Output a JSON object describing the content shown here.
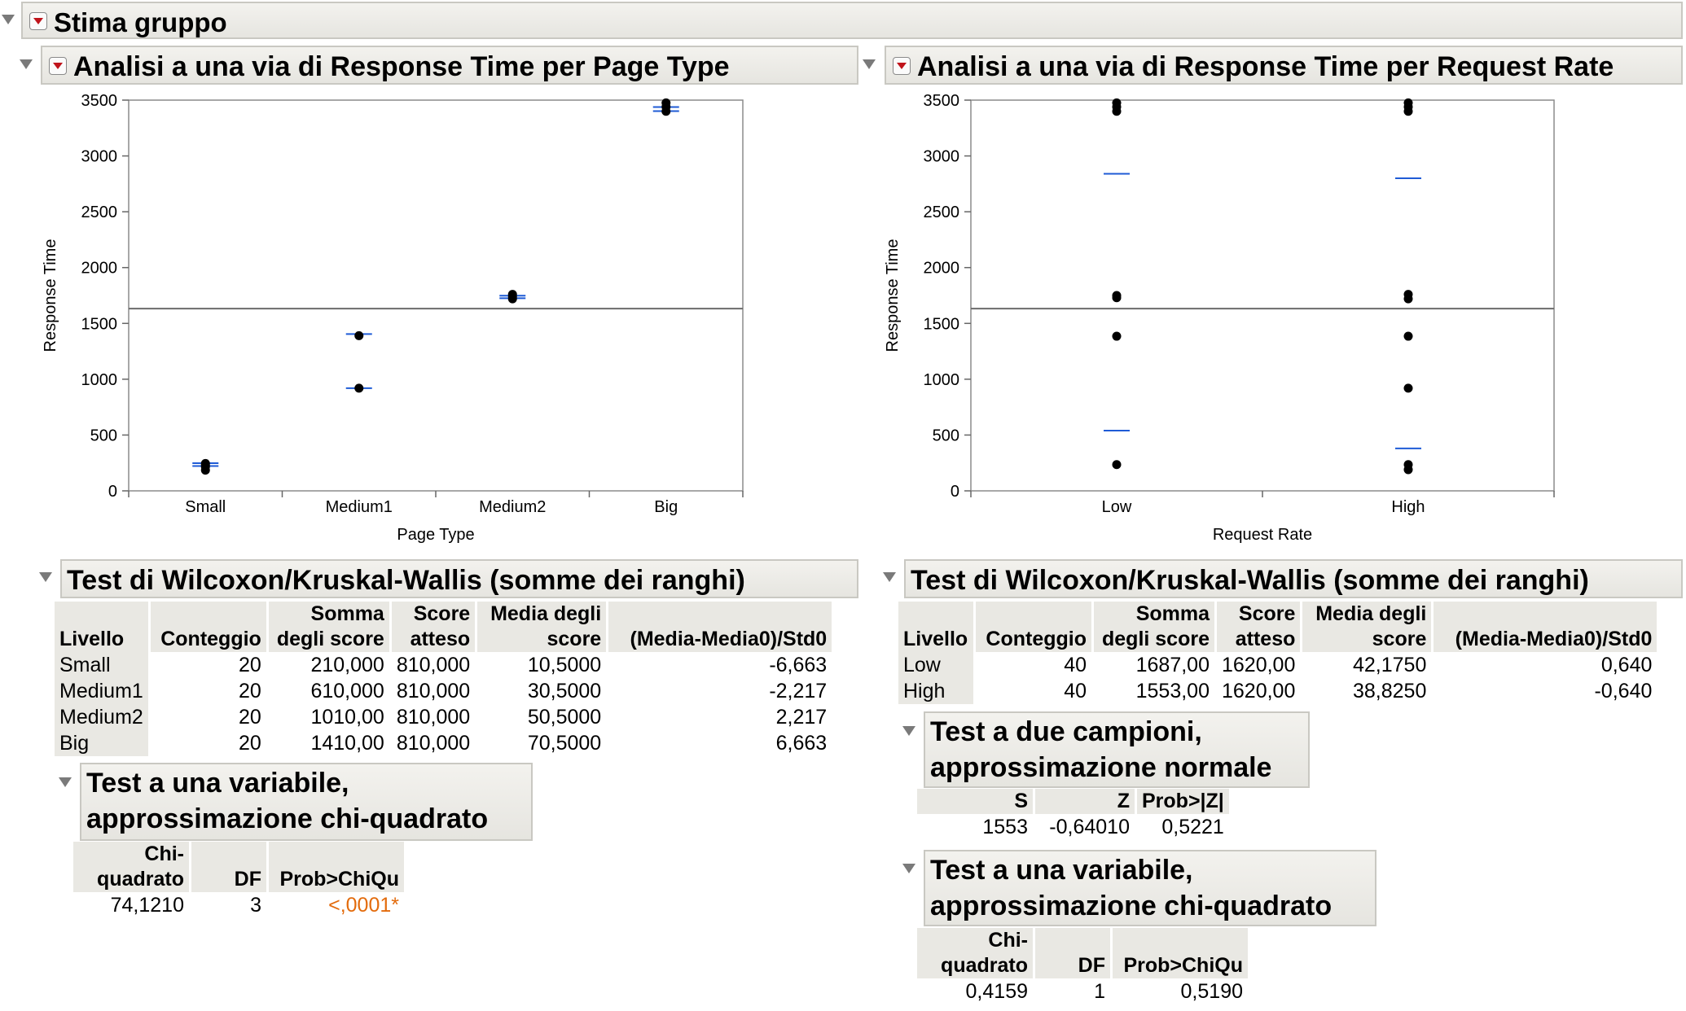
{
  "outline_title": "Stima gruppo",
  "panel_left": {
    "title": "Analisi a una via di Response Time per Page Type",
    "chart_data": {
      "type": "scatter",
      "xlabel": "Page Type",
      "ylabel": "Response Time",
      "categories": [
        "Small",
        "Medium1",
        "Medium2",
        "Big"
      ],
      "ylim": [
        0,
        3500
      ],
      "yticks": [
        0,
        500,
        1000,
        1500,
        2000,
        2500,
        3000,
        3500
      ],
      "grand_mean": 1632,
      "points": [
        {
          "x": "Small",
          "y": 245
        },
        {
          "x": "Small",
          "y": 230
        },
        {
          "x": "Small",
          "y": 215
        },
        {
          "x": "Small",
          "y": 185
        },
        {
          "x": "Medium1",
          "y": 1390
        },
        {
          "x": "Medium1",
          "y": 920
        },
        {
          "x": "Medium2",
          "y": 1760
        },
        {
          "x": "Medium2",
          "y": 1740
        },
        {
          "x": "Medium2",
          "y": 1720
        },
        {
          "x": "Big",
          "y": 3475
        },
        {
          "x": "Big",
          "y": 3440
        },
        {
          "x": "Big",
          "y": 3400
        }
      ],
      "group_means": [
        {
          "x": "Small",
          "y": [
            248,
            222
          ]
        },
        {
          "x": "Medium1",
          "y": [
            1405,
            920
          ]
        },
        {
          "x": "Medium2",
          "y": [
            1748,
            1725
          ]
        },
        {
          "x": "Big",
          "y": [
            3438,
            3402
          ]
        }
      ]
    },
    "kw_title": "Test di Wilcoxon/Kruskal-Wallis (somme dei ranghi)",
    "kw_headers": [
      "Livello",
      "Conteggio",
      "Somma degli score",
      "Score atteso",
      "Media degli score",
      "(Media-Media0)/Std0"
    ],
    "kw_rows": [
      [
        "Small",
        "20",
        "210,000",
        "810,000",
        "10,5000",
        "-6,663"
      ],
      [
        "Medium1",
        "20",
        "610,000",
        "810,000",
        "30,5000",
        "-2,217"
      ],
      [
        "Medium2",
        "20",
        "1010,00",
        "810,000",
        "50,5000",
        "2,217"
      ],
      [
        "Big",
        "20",
        "1410,00",
        "810,000",
        "70,5000",
        "6,663"
      ]
    ],
    "chi_title_1": "Test a una variabile,",
    "chi_title_2": "approssimazione chi-quadrato",
    "chi_headers": [
      "Chi-quadrato",
      "DF",
      "Prob>ChiQu"
    ],
    "chi_values": [
      "74,1210",
      "3",
      "<,0001*"
    ]
  },
  "panel_right": {
    "title": "Analisi a una via di Response Time per Request Rate",
    "chart_data": {
      "type": "scatter",
      "xlabel": "Request Rate",
      "ylabel": "Response Time",
      "categories": [
        "Low",
        "High"
      ],
      "ylim": [
        0,
        3500
      ],
      "yticks": [
        0,
        500,
        1000,
        1500,
        2000,
        2500,
        3000,
        3500
      ],
      "grand_mean": 1632,
      "points": [
        {
          "x": "Low",
          "y": 3475
        },
        {
          "x": "Low",
          "y": 3440
        },
        {
          "x": "Low",
          "y": 3400
        },
        {
          "x": "Low",
          "y": 1750
        },
        {
          "x": "Low",
          "y": 1730
        },
        {
          "x": "Low",
          "y": 1385
        },
        {
          "x": "Low",
          "y": 235
        },
        {
          "x": "High",
          "y": 3475
        },
        {
          "x": "High",
          "y": 3440
        },
        {
          "x": "High",
          "y": 3400
        },
        {
          "x": "High",
          "y": 1760
        },
        {
          "x": "High",
          "y": 1720
        },
        {
          "x": "High",
          "y": 1385
        },
        {
          "x": "High",
          "y": 920
        },
        {
          "x": "High",
          "y": 235
        },
        {
          "x": "High",
          "y": 190
        }
      ],
      "group_means": [
        {
          "x": "Low",
          "y": [
            2840,
            540
          ]
        },
        {
          "x": "High",
          "y": [
            2800,
            380
          ]
        }
      ]
    },
    "kw_title": "Test di Wilcoxon/Kruskal-Wallis (somme dei ranghi)",
    "kw_headers": [
      "Livello",
      "Conteggio",
      "Somma degli score",
      "Score atteso",
      "Media degli score",
      "(Media-Media0)/Std0"
    ],
    "kw_rows": [
      [
        "Low",
        "40",
        "1687,00",
        "1620,00",
        "42,1750",
        "0,640"
      ],
      [
        "High",
        "40",
        "1553,00",
        "1620,00",
        "38,8250",
        "-0,640"
      ]
    ],
    "two_title_1": "Test a due campioni,",
    "two_title_2": "approssimazione normale",
    "two_headers": [
      "S",
      "Z",
      "Prob>|Z|"
    ],
    "two_values": [
      "1553",
      "-0,64010",
      "0,5221"
    ],
    "chi_title_1": "Test a una variabile,",
    "chi_title_2": "approssimazione chi-quadrato",
    "chi_headers": [
      "Chi-quadrato",
      "DF",
      "Prob>ChiQu"
    ],
    "chi_values": [
      "0,4159",
      "1",
      "0,5190"
    ]
  },
  "colors": {
    "mean_line": "#1f5bd6",
    "grand_mean": "#6b6b6b",
    "pvalue_sig": "#e36b0c",
    "header_bg": "#e9e8e3"
  }
}
